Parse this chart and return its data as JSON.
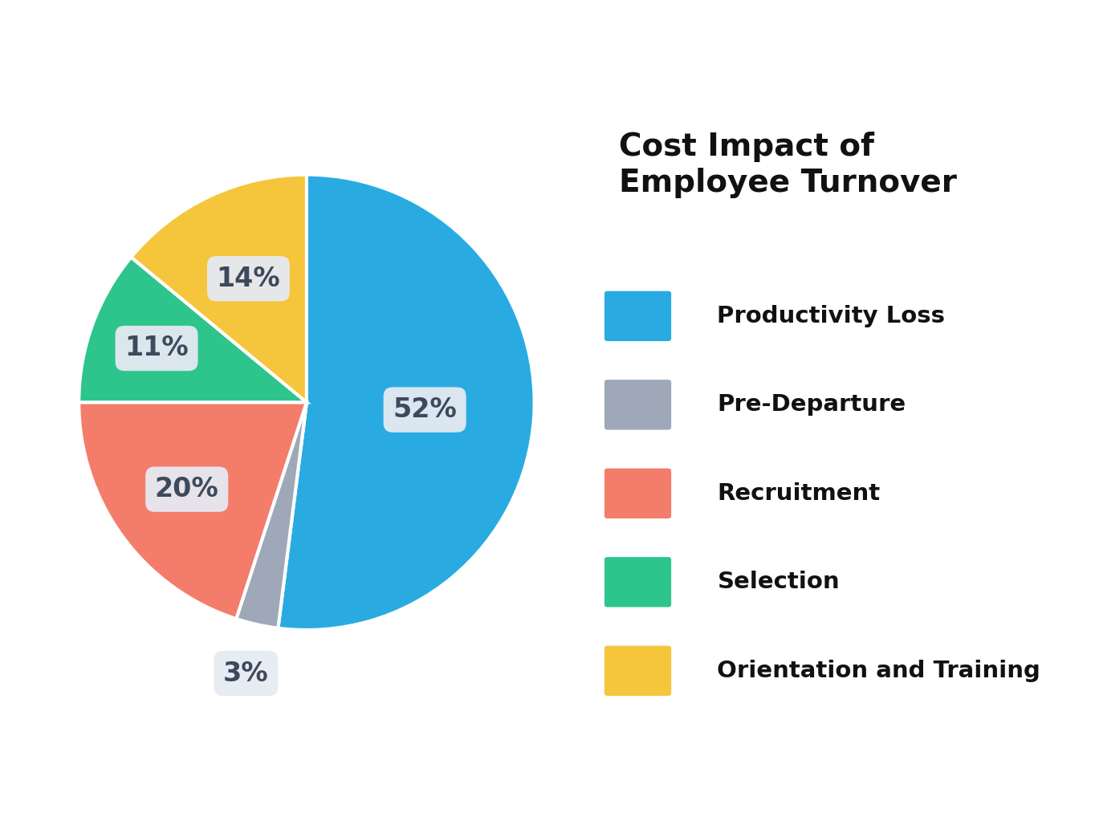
{
  "title": "Cost Impact of\nEmployee Turnover",
  "slices": [
    {
      "label": "Productivity Loss",
      "value": 52,
      "color": "#29ABE2",
      "pct_label": "52%",
      "r_label": 0.52
    },
    {
      "label": "Pre-Departure",
      "value": 3,
      "color": "#9EA8B8",
      "pct_label": "3%",
      "r_label": 1.22
    },
    {
      "label": "Recruitment",
      "value": 20,
      "color": "#F47C6A",
      "pct_label": "20%",
      "r_label": 0.65
    },
    {
      "label": "Selection",
      "value": 11,
      "color": "#2DC58C",
      "pct_label": "11%",
      "r_label": 0.7
    },
    {
      "label": "Orientation and Training",
      "value": 14,
      "color": "#F5C53C",
      "pct_label": "14%",
      "r_label": 0.6
    }
  ],
  "background_color": "#FFFFFF",
  "label_bg_color": "#E6EAF2",
  "label_text_color": "#3D4A5C",
  "title_fontsize": 28,
  "legend_fontsize": 21,
  "pct_fontsize": 24,
  "edge_color": "#FFFFFF",
  "edge_width": 3
}
